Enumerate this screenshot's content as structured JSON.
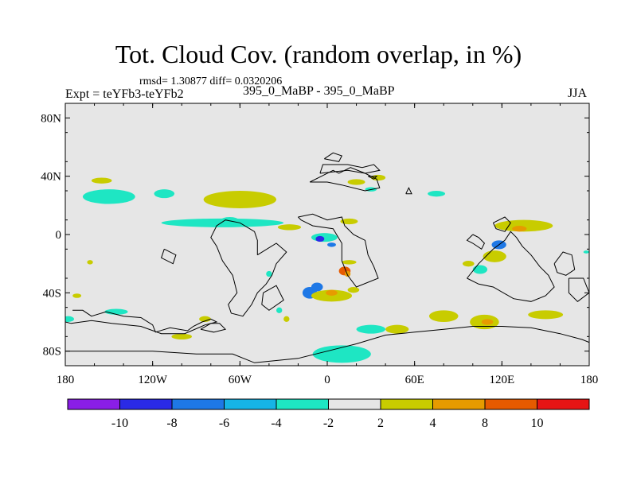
{
  "chart_data": {
    "type": "heatmap",
    "title": "Tot. Cloud Cov. (random overlap, in %)",
    "subtitle": "rmsd= 1.30877 diff= 0.0320206",
    "left_label": "Expt = teYFb3-teYFb2",
    "center_label": "395_0_MaBP - 395_0_MaBP",
    "right_label": "JJA",
    "x_ticks": [
      {
        "value": -180,
        "label": "180"
      },
      {
        "value": -120,
        "label": "120W"
      },
      {
        "value": -60,
        "label": "60W"
      },
      {
        "value": 0,
        "label": "0"
      },
      {
        "value": 60,
        "label": "60E"
      },
      {
        "value": 120,
        "label": "120E"
      },
      {
        "value": 180,
        "label": "180"
      }
    ],
    "y_ticks": [
      {
        "value": 80,
        "label": "80N"
      },
      {
        "value": 40,
        "label": "40N"
      },
      {
        "value": 0,
        "label": "0"
      },
      {
        "value": -40,
        "label": "40S"
      },
      {
        "value": -80,
        "label": "80S"
      }
    ],
    "xlim": [
      -180,
      180
    ],
    "ylim": [
      -90,
      90
    ],
    "colorbar": {
      "colors": [
        "#8a1ee6",
        "#2a2ae6",
        "#1e78e6",
        "#16b4e6",
        "#1ee6c3",
        "#e6e6e6",
        "#c8cc00",
        "#e69b00",
        "#e65a00",
        "#e61414"
      ],
      "boundary_labels": [
        "-10",
        "-8",
        "-6",
        "-4",
        "-2",
        "2",
        "4",
        "8",
        "10"
      ]
    },
    "background_color": "#e6e6e6",
    "anomalies": [
      {
        "lon": -155,
        "lat": 37,
        "dlon": 7,
        "dlat": 2,
        "level": "2 to 4",
        "color": "#c8cc00"
      },
      {
        "lon": -150,
        "lat": 26,
        "dlon": 18,
        "dlat": 5,
        "level": "-4 to -2",
        "color": "#1ee6c3"
      },
      {
        "lon": -112,
        "lat": 28,
        "dlon": 7,
        "dlat": 3,
        "level": "-4 to -2",
        "color": "#1ee6c3"
      },
      {
        "lon": -60,
        "lat": 24,
        "dlon": 25,
        "dlat": 6,
        "level": "2 to 4",
        "color": "#c8cc00"
      },
      {
        "lon": -67,
        "lat": 10,
        "dlon": 6,
        "dlat": 2,
        "level": "-4 to -2",
        "color": "#1ee6c3"
      },
      {
        "lon": -72,
        "lat": 8,
        "dlon": 42,
        "dlat": 3,
        "level": "-4 to -2",
        "color": "#1ee6c3"
      },
      {
        "lon": -26,
        "lat": 5,
        "dlon": 8,
        "dlat": 2,
        "level": "2 to 4",
        "color": "#c8cc00"
      },
      {
        "lon": 15,
        "lat": 9,
        "dlon": 6,
        "dlat": 2,
        "level": "2 to 4",
        "color": "#c8cc00"
      },
      {
        "lon": -2,
        "lat": -2,
        "dlon": 9,
        "dlat": 3,
        "level": "-4 to -2",
        "color": "#1ee6c3"
      },
      {
        "lon": -5,
        "lat": -3,
        "dlon": 3,
        "dlat": 2,
        "level": "-10 to -8",
        "color": "#2a2ae6"
      },
      {
        "lon": 3,
        "lat": -7,
        "dlon": 3,
        "dlat": 1.5,
        "level": "-8 to -6",
        "color": "#1e78e6"
      },
      {
        "lon": 12,
        "lat": -25,
        "dlon": 4,
        "dlat": 3,
        "level": "8 to 10",
        "color": "#e65a00"
      },
      {
        "lon": 14,
        "lat": -27,
        "dlon": 2,
        "dlat": 2,
        "level": "4 to 8",
        "color": "#e69b00"
      },
      {
        "lon": 15,
        "lat": -19,
        "dlon": 5,
        "dlat": 1.5,
        "level": "2 to 4",
        "color": "#c8cc00"
      },
      {
        "lon": -12,
        "lat": -40,
        "dlon": 5,
        "dlat": 4,
        "level": "-8 to -6",
        "color": "#1e78e6"
      },
      {
        "lon": -7,
        "lat": -36,
        "dlon": 4,
        "dlat": 3,
        "level": "-8 to -6",
        "color": "#1e78e6"
      },
      {
        "lon": 3,
        "lat": -42,
        "dlon": 14,
        "dlat": 4,
        "level": "2 to 4",
        "color": "#c8cc00"
      },
      {
        "lon": 3,
        "lat": -40,
        "dlon": 4,
        "dlat": 2,
        "level": "4 to 8",
        "color": "#e69b00"
      },
      {
        "lon": 18,
        "lat": -38,
        "dlon": 4,
        "dlat": 2,
        "level": "2 to 4",
        "color": "#c8cc00"
      },
      {
        "lon": 10,
        "lat": -82,
        "dlon": 20,
        "dlat": 6,
        "level": "-4 to -2",
        "color": "#1ee6c3"
      },
      {
        "lon": 30,
        "lat": -65,
        "dlon": 10,
        "dlat": 3,
        "level": "-4 to -2",
        "color": "#1ee6c3"
      },
      {
        "lon": 48,
        "lat": -65,
        "dlon": 8,
        "dlat": 3,
        "level": "2 to 4",
        "color": "#c8cc00"
      },
      {
        "lon": 30,
        "lat": 31,
        "dlon": 4,
        "dlat": 1.5,
        "level": "-4 to -2",
        "color": "#1ee6c3"
      },
      {
        "lon": 20,
        "lat": 36,
        "dlon": 6,
        "dlat": 2,
        "level": "2 to 4",
        "color": "#c8cc00"
      },
      {
        "lon": 35,
        "lat": 39,
        "dlon": 5,
        "dlat": 2,
        "level": "2 to 4",
        "color": "#c8cc00"
      },
      {
        "lon": 75,
        "lat": 28,
        "dlon": 6,
        "dlat": 2,
        "level": "-4 to -2",
        "color": "#1ee6c3"
      },
      {
        "lon": 135,
        "lat": 6,
        "dlon": 20,
        "dlat": 4,
        "level": "2 to 4",
        "color": "#c8cc00"
      },
      {
        "lon": 132,
        "lat": 4,
        "dlon": 5,
        "dlat": 2,
        "level": "4 to 8",
        "color": "#e69b00"
      },
      {
        "lon": 118,
        "lat": -7,
        "dlon": 5,
        "dlat": 3,
        "level": "-8 to -6",
        "color": "#1e78e6"
      },
      {
        "lon": 115,
        "lat": -15,
        "dlon": 8,
        "dlat": 4,
        "level": "2 to 4",
        "color": "#c8cc00"
      },
      {
        "lon": 105,
        "lat": -24,
        "dlon": 5,
        "dlat": 3,
        "level": "-4 to -2",
        "color": "#1ee6c3"
      },
      {
        "lon": 97,
        "lat": -20,
        "dlon": 4,
        "dlat": 2,
        "level": "2 to 4",
        "color": "#c8cc00"
      },
      {
        "lon": 80,
        "lat": -56,
        "dlon": 10,
        "dlat": 4,
        "level": "2 to 4",
        "color": "#c8cc00"
      },
      {
        "lon": 108,
        "lat": -60,
        "dlon": 10,
        "dlat": 5,
        "level": "2 to 4",
        "color": "#c8cc00"
      },
      {
        "lon": 110,
        "lat": -60,
        "dlon": 4,
        "dlat": 2,
        "level": "4 to 8",
        "color": "#e69b00"
      },
      {
        "lon": 150,
        "lat": -55,
        "dlon": 12,
        "dlat": 3,
        "level": "2 to 4",
        "color": "#c8cc00"
      },
      {
        "lon": 178,
        "lat": -12,
        "dlon": 2,
        "dlat": 1,
        "level": "-4 to -2",
        "color": "#1ee6c3"
      },
      {
        "lon": -163,
        "lat": -19,
        "dlon": 2,
        "dlat": 1.5,
        "level": "2 to 4",
        "color": "#c8cc00"
      },
      {
        "lon": -172,
        "lat": -42,
        "dlon": 3,
        "dlat": 1.5,
        "level": "2 to 4",
        "color": "#c8cc00"
      },
      {
        "lon": -145,
        "lat": -53,
        "dlon": 8,
        "dlat": 2,
        "level": "-4 to -2",
        "color": "#1ee6c3"
      },
      {
        "lon": -178,
        "lat": -58,
        "dlon": 4,
        "dlat": 2,
        "level": "-4 to -2",
        "color": "#1ee6c3"
      },
      {
        "lon": -100,
        "lat": -70,
        "dlon": 7,
        "dlat": 2,
        "level": "2 to 4",
        "color": "#c8cc00"
      },
      {
        "lon": -84,
        "lat": -58,
        "dlon": 4,
        "dlat": 2,
        "level": "2 to 4",
        "color": "#c8cc00"
      },
      {
        "lon": -40,
        "lat": -27,
        "dlon": 2,
        "dlat": 2,
        "level": "-4 to -2",
        "color": "#1ee6c3"
      },
      {
        "lon": -33,
        "lat": -52,
        "dlon": 2,
        "dlat": 2,
        "level": "-4 to -2",
        "color": "#1ee6c3"
      },
      {
        "lon": -28,
        "lat": -58,
        "dlon": 2,
        "dlat": 2,
        "level": "2 to 4",
        "color": "#c8cc00"
      }
    ],
    "coastlines": [
      [
        [
          -175,
          -52
        ],
        [
          -168,
          -52
        ],
        [
          -162,
          -56
        ],
        [
          -152,
          -53
        ],
        [
          -140,
          -56
        ],
        [
          -128,
          -57
        ],
        [
          -120,
          -62
        ],
        [
          -118,
          -67
        ],
        [
          -108,
          -64
        ],
        [
          -96,
          -66
        ],
        [
          -92,
          -63
        ],
        [
          -86,
          -60
        ],
        [
          -80,
          -58
        ],
        [
          -76,
          -60
        ],
        [
          -84,
          -62
        ],
        [
          -98,
          -68
        ],
        [
          -114,
          -68
        ],
        [
          -128,
          -63
        ],
        [
          -148,
          -61
        ],
        [
          -162,
          -59
        ],
        [
          -176,
          -61
        ],
        [
          -180,
          -60
        ]
      ],
      [
        [
          -87,
          -65
        ],
        [
          -80,
          -61
        ],
        [
          -74,
          -61
        ],
        [
          -70,
          -65
        ],
        [
          -78,
          -67
        ],
        [
          -87,
          -65
        ]
      ],
      [
        [
          -180,
          -80
        ],
        [
          -120,
          -80
        ],
        [
          -90,
          -82
        ],
        [
          -65,
          -82
        ],
        [
          -50,
          -88
        ],
        [
          -20,
          -85
        ],
        [
          0,
          -80
        ],
        [
          20,
          -75
        ],
        [
          40,
          -69
        ],
        [
          60,
          -67
        ],
        [
          80,
          -65
        ],
        [
          100,
          -63
        ],
        [
          120,
          -63
        ],
        [
          140,
          -64
        ],
        [
          160,
          -68
        ],
        [
          175,
          -72
        ],
        [
          180,
          -74
        ]
      ],
      [
        [
          -48,
          -14
        ],
        [
          -35,
          -6
        ],
        [
          -28,
          -12
        ],
        [
          -35,
          -20
        ],
        [
          -38,
          -28
        ],
        [
          -42,
          -34
        ],
        [
          -48,
          -40
        ],
        [
          -52,
          -48
        ],
        [
          -58,
          -56
        ],
        [
          -66,
          -54
        ],
        [
          -68,
          -48
        ],
        [
          -62,
          -40
        ],
        [
          -65,
          -28
        ],
        [
          -72,
          -18
        ],
        [
          -76,
          -8
        ],
        [
          -80,
          -2
        ],
        [
          -76,
          6
        ],
        [
          -70,
          10
        ],
        [
          -60,
          8
        ],
        [
          -50,
          2
        ],
        [
          -48,
          -4
        ],
        [
          -48,
          -14
        ]
      ],
      [
        [
          -44,
          -40
        ],
        [
          -35,
          -35
        ],
        [
          -30,
          -45
        ],
        [
          -40,
          -52
        ],
        [
          -45,
          -48
        ],
        [
          -44,
          -40
        ]
      ],
      [
        [
          -20,
          12
        ],
        [
          -10,
          14
        ],
        [
          0,
          10
        ],
        [
          10,
          12
        ],
        [
          12,
          6
        ],
        [
          18,
          0
        ],
        [
          26,
          -4
        ],
        [
          28,
          -14
        ],
        [
          32,
          -22
        ],
        [
          35,
          -30
        ],
        [
          20,
          -36
        ],
        [
          14,
          -28
        ],
        [
          10,
          -18
        ],
        [
          10,
          -6
        ],
        [
          4,
          4
        ],
        [
          -10,
          6
        ],
        [
          -18,
          10
        ],
        [
          -20,
          12
        ]
      ],
      [
        [
          -12,
          36
        ],
        [
          -4,
          40
        ],
        [
          4,
          44
        ],
        [
          8,
          42
        ],
        [
          16,
          46
        ],
        [
          26,
          42
        ],
        [
          34,
          38
        ],
        [
          36,
          32
        ],
        [
          26,
          30
        ],
        [
          10,
          34
        ],
        [
          0,
          36
        ],
        [
          -12,
          36
        ]
      ],
      [
        [
          -5,
          42
        ],
        [
          -3,
          48
        ],
        [
          4,
          48
        ],
        [
          14,
          48
        ],
        [
          24,
          46
        ],
        [
          32,
          48
        ],
        [
          36,
          44
        ],
        [
          26,
          42
        ],
        [
          14,
          44
        ],
        [
          -5,
          42
        ]
      ],
      [
        [
          28,
          40
        ],
        [
          32,
          38
        ],
        [
          34,
          40
        ],
        [
          28,
          40
        ]
      ],
      [
        [
          -2,
          52
        ],
        [
          4,
          56
        ],
        [
          10,
          54
        ],
        [
          8,
          50
        ],
        [
          -2,
          52
        ]
      ],
      [
        [
          54,
          28
        ],
        [
          56,
          32
        ],
        [
          58,
          28
        ],
        [
          54,
          28
        ]
      ],
      [
        [
          100,
          0
        ],
        [
          104,
          -2
        ],
        [
          108,
          -6
        ],
        [
          106,
          -10
        ],
        [
          100,
          -6
        ],
        [
          96,
          -4
        ],
        [
          100,
          0
        ]
      ],
      [
        [
          114,
          8
        ],
        [
          122,
          12
        ],
        [
          126,
          8
        ],
        [
          122,
          2
        ],
        [
          116,
          4
        ],
        [
          114,
          8
        ]
      ],
      [
        [
          96,
          -30
        ],
        [
          104,
          -20
        ],
        [
          114,
          -10
        ],
        [
          122,
          -4
        ],
        [
          126,
          2
        ],
        [
          130,
          -2
        ],
        [
          134,
          -8
        ],
        [
          140,
          -14
        ],
        [
          146,
          -22
        ],
        [
          152,
          -28
        ],
        [
          156,
          -36
        ],
        [
          150,
          -42
        ],
        [
          140,
          -46
        ],
        [
          128,
          -44
        ],
        [
          114,
          -36
        ],
        [
          104,
          -34
        ],
        [
          96,
          -30
        ]
      ],
      [
        [
          156,
          -20
        ],
        [
          162,
          -12
        ],
        [
          168,
          -14
        ],
        [
          170,
          -24
        ],
        [
          164,
          -28
        ],
        [
          158,
          -26
        ],
        [
          156,
          -20
        ]
      ],
      [
        [
          166,
          -30
        ],
        [
          176,
          -30
        ],
        [
          180,
          -40
        ],
        [
          172,
          -46
        ],
        [
          166,
          -40
        ],
        [
          166,
          -30
        ]
      ],
      [
        [
          -112,
          -10
        ],
        [
          -104,
          -14
        ],
        [
          -106,
          -20
        ],
        [
          -114,
          -16
        ],
        [
          -112,
          -10
        ]
      ]
    ]
  }
}
